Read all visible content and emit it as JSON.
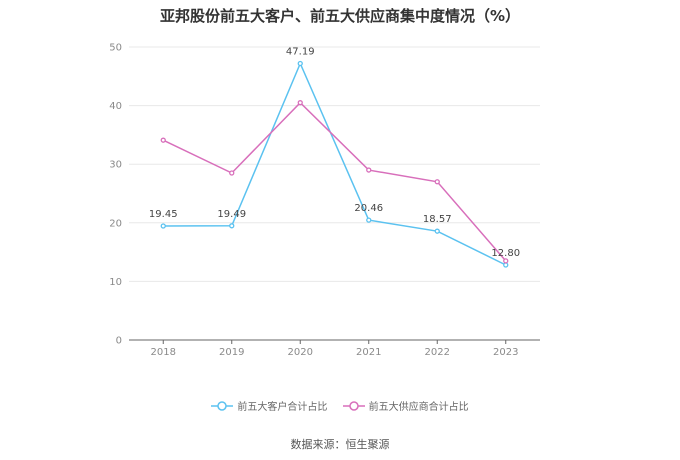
{
  "title": "亚邦股份前五大客户、前五大供应商集中度情况（%）",
  "source": "数据来源：恒生聚源",
  "chart_data": {
    "type": "line",
    "x": [
      "2018",
      "2019",
      "2020",
      "2021",
      "2022",
      "2023"
    ],
    "ylim": [
      0,
      50
    ],
    "yticks": [
      0,
      10,
      20,
      30,
      40,
      50
    ],
    "grid": true,
    "legend_position": "bottom",
    "series": [
      {
        "name": "前五大客户合计占比",
        "color": "#5bc2f0",
        "values": [
          19.45,
          19.49,
          47.19,
          20.46,
          18.57,
          12.8
        ],
        "data_labels": [
          "19.45",
          "19.49",
          "47.19",
          "20.46",
          "18.57",
          "12.80"
        ]
      },
      {
        "name": "前五大供应商合计占比",
        "color": "#d86fbb",
        "values": [
          34.1,
          28.5,
          40.5,
          29.0,
          27.0,
          13.5
        ]
      }
    ]
  }
}
